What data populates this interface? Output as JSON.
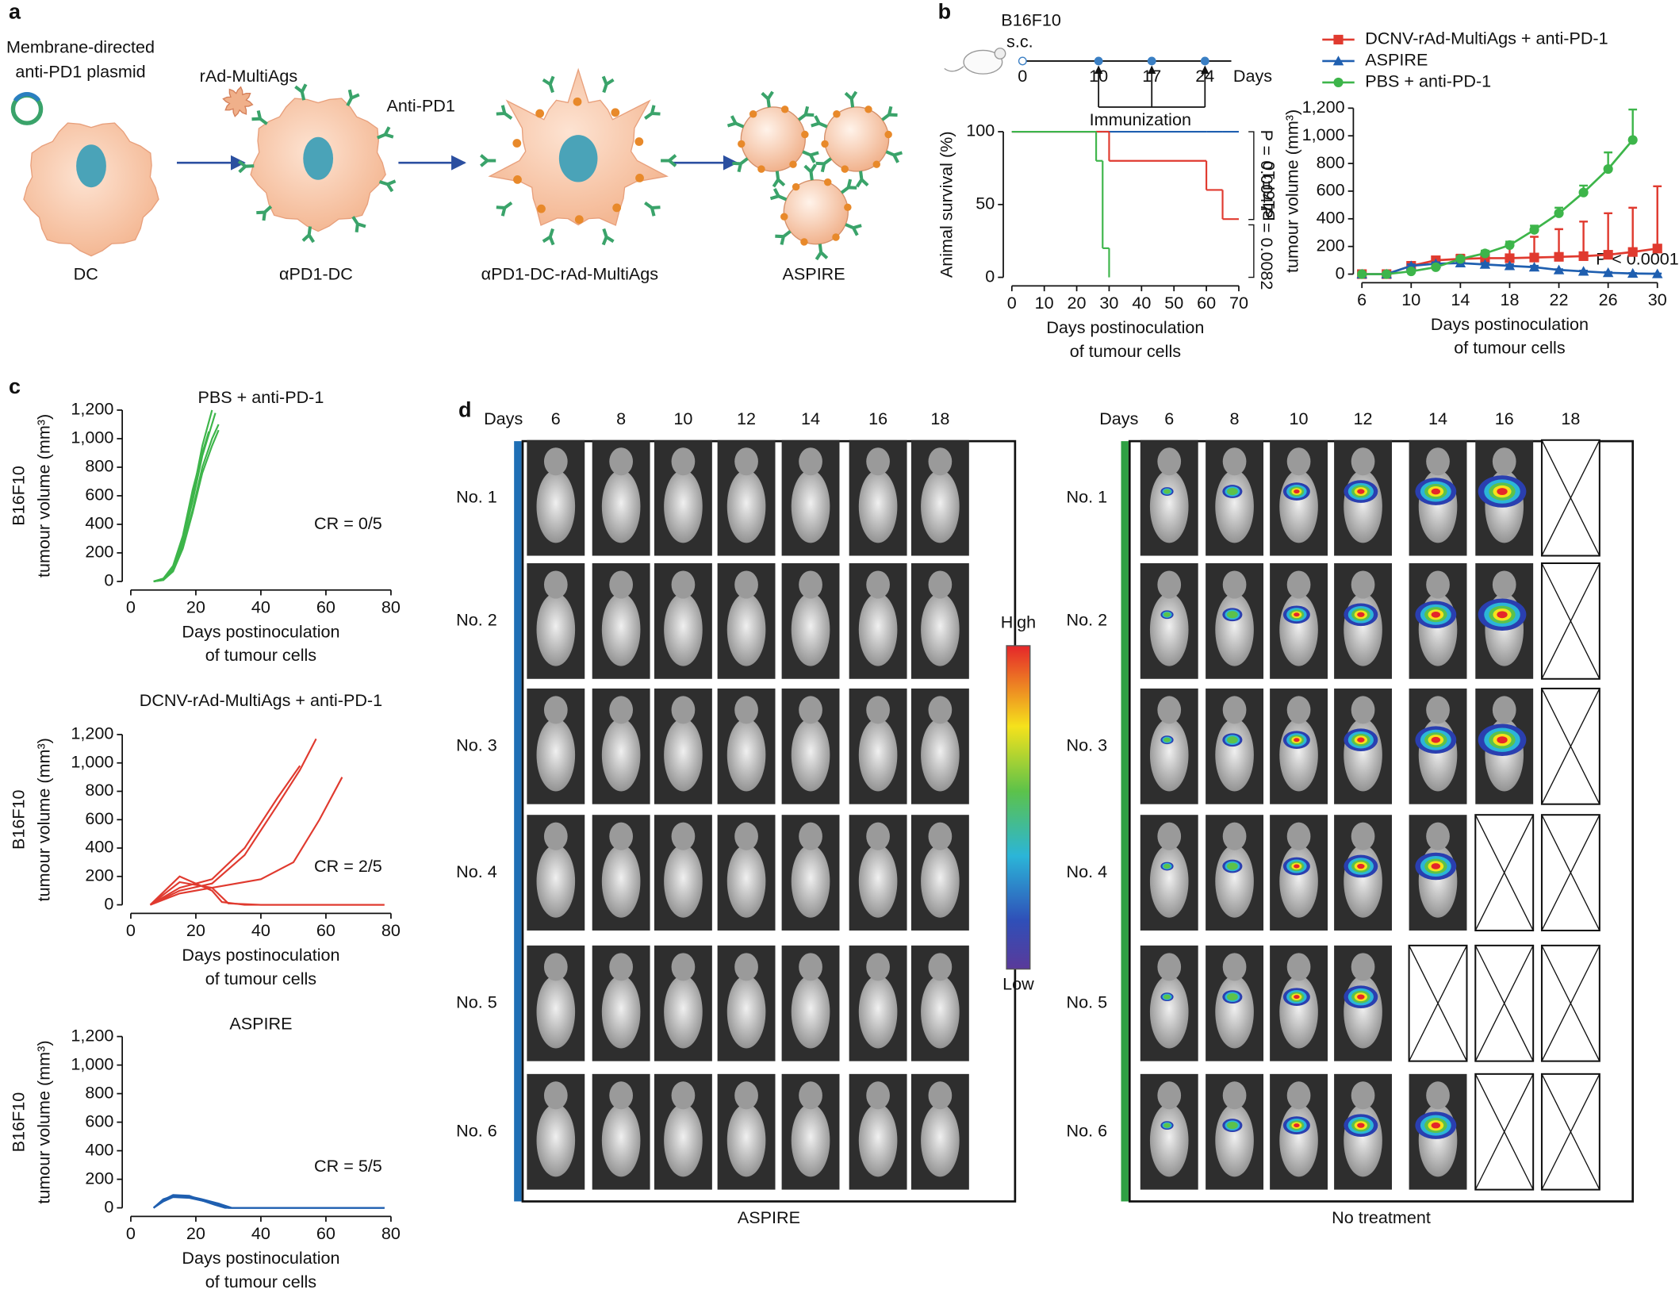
{
  "panel_labels": [
    "a",
    "b",
    "c",
    "d"
  ],
  "schematic": {
    "plasmid_label": [
      "Membrane-directed",
      "anti-PD1 plasmid"
    ],
    "virus_label": "rAd-MultiAgs",
    "antibody_label": "Anti-PD1",
    "stages": [
      "DC",
      "αPD1-DC",
      "αPD1-DC-rAd-MultiAgs",
      "ASPIRE"
    ]
  },
  "timeline": {
    "tumour": "B16F10",
    "route": "s.c.",
    "days": [
      0,
      10,
      17,
      24
    ],
    "unit": "Days",
    "event": "Immunization"
  },
  "chart_data": [
    {
      "type": "step",
      "y_label": [
        "Animal survival (%)"
      ],
      "x_label": [
        "Days postinoculation",
        "of tumour cells"
      ],
      "x": [
        0,
        26,
        28,
        30,
        60,
        65,
        70
      ],
      "series": [
        {
          "color": "#1f5fb0",
          "values": [
            100,
            100,
            100,
            100,
            100,
            100,
            100
          ]
        },
        {
          "color": "#e03a2f",
          "values": [
            100,
            100,
            100,
            80,
            60,
            40,
            40
          ]
        },
        {
          "color": "#3db54a",
          "values": [
            100,
            80,
            20,
            0,
            null,
            null,
            null
          ]
        }
      ],
      "xlim": [
        0,
        70
      ],
      "xticks": [
        0,
        10,
        20,
        30,
        40,
        50,
        60,
        70
      ],
      "ylim": [
        0,
        100
      ],
      "yticks": [
        0,
        50,
        100
      ],
      "annotations": [
        "P = 0.0047",
        "P = 0.0082"
      ]
    },
    {
      "type": "line",
      "y_label": [
        "B16F10",
        "tumour volume (mm³)"
      ],
      "x_label": [
        "Days postinoculation",
        "of tumour cells"
      ],
      "x": [
        6,
        8,
        10,
        12,
        14,
        16,
        18,
        20,
        22,
        24,
        26,
        28,
        30
      ],
      "series": [
        {
          "name": "DCNV-rAd-MultiAgs + anti-PD-1",
          "color": "#e03a2f",
          "marker": "square",
          "values": [
            0,
            0,
            60,
            100,
            110,
            115,
            115,
            120,
            125,
            130,
            140,
            160,
            185
          ],
          "errors": [
            0,
            0,
            10,
            20,
            30,
            50,
            100,
            150,
            200,
            250,
            300,
            320,
            450
          ]
        },
        {
          "name": "ASPIRE",
          "color": "#1f5fb0",
          "marker": "triangle",
          "values": [
            0,
            0,
            60,
            75,
            80,
            70,
            60,
            50,
            30,
            20,
            10,
            5,
            2
          ],
          "errors": [
            0,
            0,
            10,
            10,
            10,
            10,
            10,
            10,
            5,
            5,
            5,
            3,
            2
          ]
        },
        {
          "name": "PBS + anti-PD-1",
          "color": "#3db54a",
          "marker": "circle",
          "values": [
            0,
            0,
            20,
            50,
            110,
            150,
            210,
            320,
            440,
            590,
            760,
            970,
            null
          ],
          "errors": [
            0,
            0,
            5,
            10,
            15,
            20,
            25,
            30,
            40,
            50,
            120,
            220,
            null
          ]
        }
      ],
      "xlim": [
        6,
        30
      ],
      "xticks": [
        6,
        10,
        14,
        18,
        22,
        26,
        30
      ],
      "ylim": [
        0,
        1200
      ],
      "yticks": [
        0,
        200,
        400,
        600,
        800,
        {
          "value": 1000,
          "label": "1,000"
        },
        {
          "value": 1200,
          "label": "1,200"
        }
      ],
      "annotations": [
        "P < 0.0001"
      ]
    },
    {
      "type": "line",
      "title": "PBS + anti-PD-1",
      "y_label": [
        "B16F10",
        "tumour volume (mm³)"
      ],
      "x_label": [
        "Days postinoculation",
        "of tumour cells"
      ],
      "series": [
        {
          "color": "#3db54a",
          "x": [
            7,
            10,
            13,
            16,
            19,
            22,
            25
          ],
          "values": [
            0,
            20,
            100,
            300,
            600,
            950,
            1200
          ]
        },
        {
          "color": "#3db54a",
          "x": [
            7,
            10,
            13,
            16,
            19,
            22,
            26
          ],
          "values": [
            0,
            15,
            90,
            280,
            560,
            880,
            1180
          ]
        },
        {
          "color": "#3db54a",
          "x": [
            7,
            10,
            13,
            16,
            19,
            22,
            25,
            27
          ],
          "values": [
            0,
            10,
            80,
            250,
            500,
            800,
            1000,
            1100
          ]
        },
        {
          "color": "#3db54a",
          "x": [
            7,
            10,
            13,
            16,
            19,
            22,
            25,
            27
          ],
          "values": [
            0,
            10,
            70,
            230,
            480,
            760,
            950,
            1060
          ]
        },
        {
          "color": "#3db54a",
          "x": [
            7,
            10,
            13,
            16,
            19,
            22,
            24
          ],
          "values": [
            0,
            20,
            110,
            320,
            640,
            900,
            1050
          ]
        }
      ],
      "xlim": [
        0,
        80
      ],
      "xticks": [
        0,
        20,
        40,
        60,
        80
      ],
      "ylim": [
        0,
        1200
      ],
      "yticks": [
        0,
        200,
        400,
        600,
        800,
        {
          "value": 1000,
          "label": "1,000"
        },
        {
          "value": 1200,
          "label": "1,200"
        }
      ],
      "annotations": [
        "CR = 0/5"
      ]
    },
    {
      "type": "line",
      "title": "DCNV-rAd-MultiAgs + anti-PD-1",
      "y_label": [
        "B16F10",
        "tumour volume (mm³)"
      ],
      "x_label": [
        "Days postinoculation",
        "of tumour cells"
      ],
      "series": [
        {
          "color": "#e03a2f",
          "x": [
            6,
            15,
            25,
            35,
            45,
            52,
            57
          ],
          "values": [
            0,
            100,
            150,
            350,
            700,
            950,
            1170
          ]
        },
        {
          "color": "#e03a2f",
          "x": [
            6,
            15,
            25,
            35,
            45,
            52
          ],
          "values": [
            0,
            120,
            180,
            400,
            750,
            980
          ]
        },
        {
          "color": "#e03a2f",
          "x": [
            6,
            15,
            25,
            40,
            50,
            58,
            65
          ],
          "values": [
            0,
            80,
            120,
            180,
            300,
            600,
            900
          ]
        },
        {
          "color": "#e03a2f",
          "x": [
            6,
            15,
            25,
            30,
            40,
            78
          ],
          "values": [
            0,
            160,
            120,
            10,
            0,
            0
          ]
        },
        {
          "color": "#e03a2f",
          "x": [
            6,
            15,
            25,
            28,
            35,
            78
          ],
          "values": [
            0,
            200,
            100,
            20,
            0,
            0
          ]
        }
      ],
      "xlim": [
        0,
        80
      ],
      "xticks": [
        0,
        20,
        40,
        60,
        80
      ],
      "ylim": [
        0,
        1200
      ],
      "yticks": [
        0,
        200,
        400,
        600,
        800,
        {
          "value": 1000,
          "label": "1,000"
        },
        {
          "value": 1200,
          "label": "1,200"
        }
      ],
      "annotations": [
        "CR = 2/5"
      ]
    },
    {
      "type": "line",
      "title": "ASPIRE",
      "y_label": [
        "B16F10",
        "tumour volume (mm³)"
      ],
      "x_label": [
        "Days postinoculation",
        "of tumour cells"
      ],
      "series": [
        {
          "color": "#1f5fb0",
          "x": [
            7,
            10,
            13,
            18,
            22,
            27,
            30,
            78
          ],
          "values": [
            0,
            60,
            85,
            80,
            60,
            30,
            0,
            0
          ]
        },
        {
          "color": "#1f5fb0",
          "x": [
            7,
            10,
            13,
            18,
            22,
            27,
            30,
            78
          ],
          "values": [
            0,
            50,
            80,
            75,
            55,
            25,
            0,
            0
          ]
        },
        {
          "color": "#1f5fb0",
          "x": [
            7,
            10,
            13,
            18,
            22,
            26,
            29,
            78
          ],
          "values": [
            0,
            55,
            90,
            85,
            50,
            20,
            0,
            0
          ]
        },
        {
          "color": "#1f5fb0",
          "x": [
            7,
            10,
            13,
            18,
            22,
            27,
            31,
            78
          ],
          "values": [
            0,
            45,
            75,
            70,
            50,
            30,
            0,
            0
          ]
        },
        {
          "color": "#1f5fb0",
          "x": [
            7,
            10,
            13,
            18,
            23,
            28,
            30,
            78
          ],
          "values": [
            0,
            60,
            80,
            72,
            45,
            15,
            0,
            0
          ]
        }
      ],
      "xlim": [
        0,
        80
      ],
      "xticks": [
        0,
        20,
        40,
        60,
        80
      ],
      "ylim": [
        0,
        1200
      ],
      "yticks": [
        0,
        200,
        400,
        600,
        800,
        {
          "value": 1000,
          "label": "1,000"
        },
        {
          "value": 1200,
          "label": "1,200"
        }
      ],
      "annotations": [
        "CR = 5/5"
      ]
    }
  ],
  "imaging": {
    "days_label": "Days",
    "days": [
      6,
      8,
      10,
      12,
      14,
      16,
      18
    ],
    "mice": [
      "No. 1",
      "No. 2",
      "No. 3",
      "No. 4",
      "No. 5",
      "No. 6"
    ],
    "groups": [
      "ASPIRE",
      "No treatment"
    ],
    "scale": {
      "high": "High",
      "low": "Low"
    }
  }
}
